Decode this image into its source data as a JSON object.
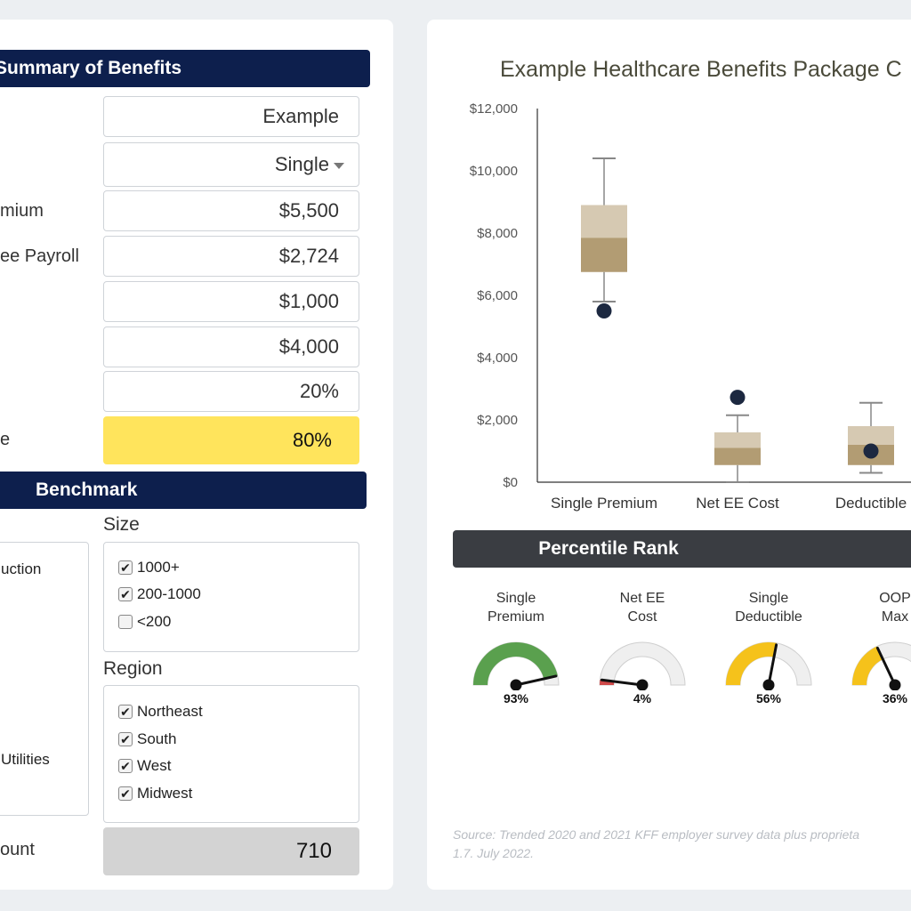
{
  "left": {
    "summary_header": "Summary of Benefits",
    "fields": [
      {
        "label": "",
        "value": "Example"
      },
      {
        "label": "",
        "value": "Single",
        "dropdown": true
      },
      {
        "label": "mium",
        "value": "$5,500"
      },
      {
        "label": "ee Payroll",
        "value": "$2,724"
      },
      {
        "label": "",
        "value": "$1,000"
      },
      {
        "label": "",
        "value": "$4,000"
      },
      {
        "label": "",
        "value": "20%"
      },
      {
        "label": "e",
        "value": "80%"
      }
    ],
    "benchmark_header": "Benchmark",
    "industry_items": [
      "uction",
      "Utilities"
    ],
    "size_title": "Size",
    "size_options": [
      {
        "label": "1000+",
        "checked": true
      },
      {
        "label": "200-1000",
        "checked": true
      },
      {
        "label": "<200",
        "checked": false
      }
    ],
    "region_title": "Region",
    "region_options": [
      {
        "label": "Northeast",
        "checked": true
      },
      {
        "label": "South",
        "checked": true
      },
      {
        "label": "West",
        "checked": true
      },
      {
        "label": "Midwest",
        "checked": true
      }
    ],
    "count_label": "ount",
    "count_value": "710"
  },
  "right": {
    "chart_title": "Example Healthcare Benefits Package C",
    "percentile_header": "Percentile Rank",
    "gauges": [
      {
        "label1": "Single",
        "label2": "Premium",
        "value": "93%",
        "pct": 0.93,
        "color": "#5aa04e"
      },
      {
        "label1": "Net EE",
        "label2": "Cost",
        "value": "4%",
        "pct": 0.04,
        "color": "#d04a4a"
      },
      {
        "label1": "Single",
        "label2": "Deductible",
        "value": "56%",
        "pct": 0.56,
        "color": "#f5c21b"
      },
      {
        "label1": "OOP",
        "label2": "Max",
        "value": "36%",
        "pct": 0.36,
        "color": "#f5c21b"
      }
    ],
    "source_line1": "Source: Trended 2020 and 2021 KFF employer survey data plus proprieta",
    "source_line2": "1.7. July 2022."
  },
  "chart_data": {
    "type": "boxplot",
    "title": "Example Healthcare Benefits Package C",
    "ylim": [
      0,
      12000
    ],
    "yticks": [
      0,
      2000,
      4000,
      6000,
      8000,
      10000,
      12000
    ],
    "ytick_labels": [
      "$0",
      "$2,000",
      "$4,000",
      "$6,000",
      "$8,000",
      "$10,000",
      "$12,000"
    ],
    "categories": [
      "Single Premium",
      "Net EE Cost",
      "Deductible"
    ],
    "boxes": [
      {
        "min": 5800,
        "q1": 6750,
        "median": 7850,
        "q3": 8900,
        "max": 10400,
        "point": 5500
      },
      {
        "min": 0,
        "q1": 550,
        "median": 1100,
        "q3": 1600,
        "max": 2150,
        "point": 2724
      },
      {
        "min": 300,
        "q1": 550,
        "median": 1200,
        "q3": 1800,
        "max": 2550,
        "point": 1000
      }
    ],
    "box_colors": {
      "lower": "#b29c73",
      "upper": "#d6c9b2",
      "point": "#1c2840",
      "whisker": "#888888"
    }
  }
}
